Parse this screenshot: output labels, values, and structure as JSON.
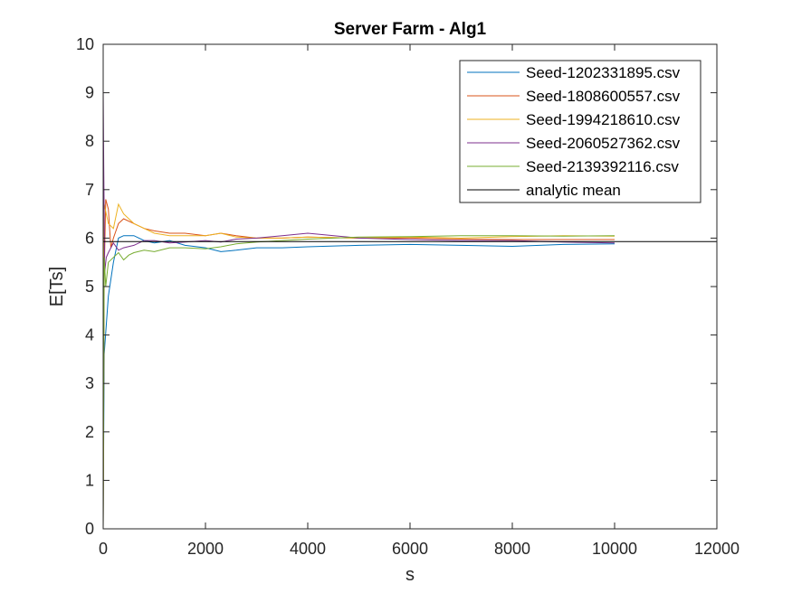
{
  "chart_data": {
    "type": "line",
    "title": "Server Farm - Alg1",
    "xlabel": "s",
    "ylabel": "E[Ts]",
    "xlim": [
      0,
      12000
    ],
    "ylim": [
      0,
      10
    ],
    "xticks": [
      "0",
      "2000",
      "4000",
      "6000",
      "8000",
      "10000",
      "12000"
    ],
    "yticks": [
      "0",
      "1",
      "2",
      "3",
      "4",
      "5",
      "6",
      "7",
      "8",
      "9",
      "10"
    ],
    "grid": false,
    "legend_position": "top-right",
    "series": [
      {
        "name": "Seed-1202331895.csv",
        "color": "#0072BD",
        "x": [
          0,
          20,
          60,
          100,
          200,
          300,
          400,
          600,
          800,
          1000,
          1300,
          1600,
          2000,
          2300,
          2600,
          3000,
          3500,
          4000,
          5000,
          6000,
          7000,
          8000,
          9000,
          10000
        ],
        "y": [
          0,
          3.6,
          4.2,
          4.8,
          5.5,
          6.0,
          6.05,
          6.05,
          5.95,
          5.9,
          5.95,
          5.85,
          5.8,
          5.72,
          5.75,
          5.8,
          5.8,
          5.82,
          5.85,
          5.87,
          5.85,
          5.83,
          5.87,
          5.88
        ]
      },
      {
        "name": "Seed-1808600557.csv",
        "color": "#D95319",
        "x": [
          0,
          20,
          50,
          100,
          150,
          200,
          300,
          400,
          600,
          800,
          1000,
          1300,
          1600,
          2000,
          2300,
          2600,
          3000,
          3500,
          4000,
          5000,
          6000,
          7000,
          8000,
          9000,
          10000
        ],
        "y": [
          0,
          5.2,
          6.8,
          6.6,
          5.8,
          6.0,
          6.3,
          6.4,
          6.3,
          6.2,
          6.15,
          6.1,
          6.1,
          6.05,
          6.1,
          6.05,
          6.0,
          6.0,
          6.02,
          6.0,
          6.0,
          5.98,
          5.97,
          5.97,
          5.97
        ]
      },
      {
        "name": "Seed-1994218610.csv",
        "color": "#EDB120",
        "x": [
          0,
          20,
          60,
          100,
          200,
          300,
          400,
          500,
          600,
          800,
          1000,
          1300,
          1600,
          2000,
          2300,
          2600,
          3000,
          3500,
          4000,
          5000,
          6000,
          7000,
          8000,
          9000,
          10000
        ],
        "y": [
          0,
          6.7,
          6.5,
          6.3,
          6.2,
          6.7,
          6.5,
          6.4,
          6.3,
          6.2,
          6.1,
          6.05,
          6.05,
          6.05,
          6.1,
          6.02,
          6.0,
          6.0,
          6.02,
          6.0,
          6.02,
          6.0,
          6.03,
          6.05,
          6.04
        ]
      },
      {
        "name": "Seed-2060527362.csv",
        "color": "#7E2F8E",
        "x": [
          0,
          10,
          30,
          60,
          100,
          200,
          300,
          400,
          600,
          800,
          1000,
          1300,
          1600,
          2000,
          2300,
          2600,
          3000,
          3500,
          4000,
          5000,
          6000,
          7000,
          8000,
          9000,
          10000
        ],
        "y": [
          9.1,
          7.5,
          5.3,
          5.6,
          5.7,
          5.9,
          5.75,
          5.8,
          5.85,
          5.95,
          5.95,
          5.9,
          5.92,
          5.95,
          5.92,
          5.98,
          6.0,
          6.05,
          6.1,
          6.0,
          5.97,
          5.95,
          5.95,
          5.92,
          5.9
        ]
      },
      {
        "name": "Seed-2139392116.csv",
        "color": "#77AC30",
        "x": [
          0,
          20,
          50,
          100,
          200,
          300,
          400,
          500,
          600,
          800,
          1000,
          1300,
          1600,
          2000,
          2300,
          2600,
          3000,
          3500,
          4000,
          5000,
          6000,
          7000,
          8000,
          9000,
          10000
        ],
        "y": [
          0,
          5.6,
          5.0,
          5.5,
          5.6,
          5.7,
          5.55,
          5.65,
          5.7,
          5.75,
          5.72,
          5.8,
          5.8,
          5.78,
          5.82,
          5.88,
          5.92,
          5.95,
          5.98,
          6.02,
          6.03,
          6.05,
          6.05,
          6.04,
          6.05
        ]
      },
      {
        "name": "analytic mean",
        "color": "#000000",
        "x": [
          0,
          12000
        ],
        "y": [
          5.93,
          5.93
        ]
      }
    ]
  }
}
